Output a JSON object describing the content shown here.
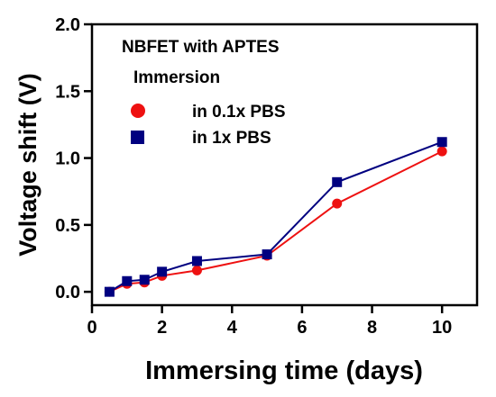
{
  "chart_data": {
    "type": "line",
    "title": "",
    "xlabel": "Immersing time (days)",
    "ylabel": "Voltage shift (V)",
    "xlim": [
      0,
      11
    ],
    "ylim": [
      -0.1,
      2.0
    ],
    "xticks": [
      0,
      2,
      4,
      6,
      8,
      10
    ],
    "yticks": [
      0.0,
      0.5,
      1.0,
      1.5,
      2.0
    ],
    "xtick_labels": [
      "0",
      "2",
      "4",
      "6",
      "8",
      "10"
    ],
    "ytick_labels": [
      "0.0",
      "0.5",
      "1.0",
      "1.5",
      "2.0"
    ],
    "grid": false,
    "legend_position": "top-left",
    "annotations": [
      "NBFET with APTES",
      "Immersion"
    ],
    "series": [
      {
        "name": "in 0.1x PBS",
        "marker": "circle",
        "color": "#ee1111",
        "x": [
          0.5,
          1,
          1.5,
          2,
          3,
          5,
          7,
          10
        ],
        "y": [
          0.0,
          0.06,
          0.07,
          0.12,
          0.16,
          0.27,
          0.66,
          1.05
        ]
      },
      {
        "name": "in 1x PBS",
        "marker": "square",
        "color": "#000080",
        "x": [
          0.5,
          1,
          1.5,
          2,
          3,
          5,
          7,
          10
        ],
        "y": [
          0.0,
          0.08,
          0.09,
          0.15,
          0.23,
          0.28,
          0.82,
          1.12
        ]
      }
    ]
  }
}
